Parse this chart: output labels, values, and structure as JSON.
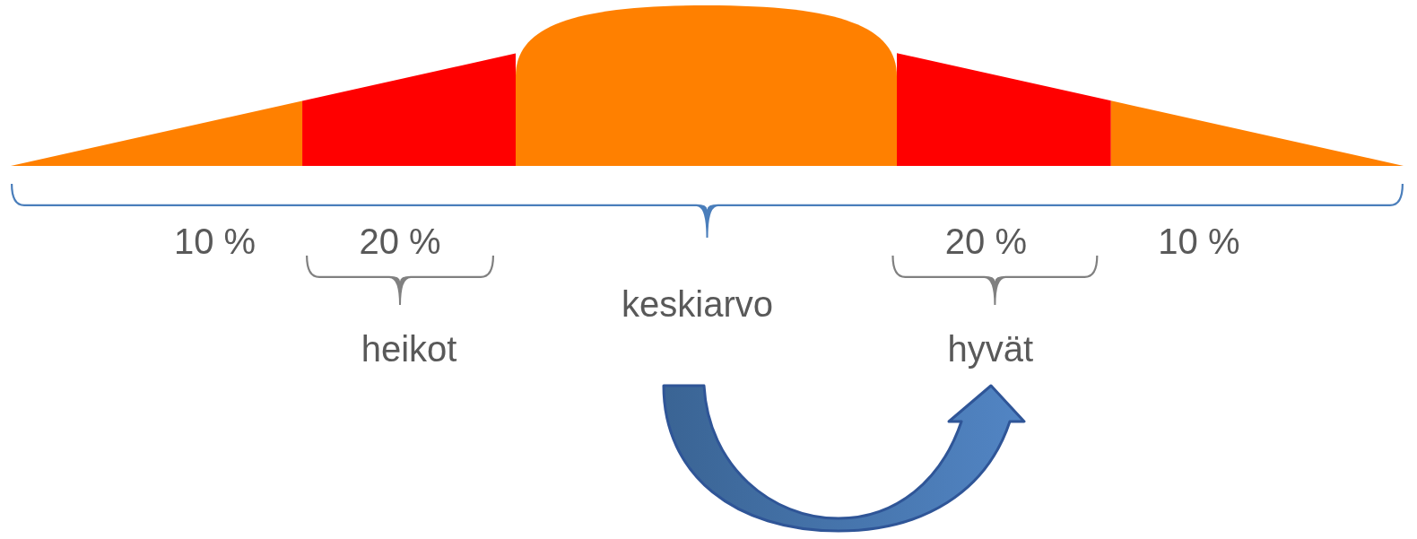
{
  "chart_data": {
    "type": "other",
    "categories": [
      null,
      "heikot",
      "keskiarvo",
      "hyvät",
      null
    ],
    "values": [
      10,
      20,
      null,
      20,
      10
    ],
    "value_labels": [
      "10 %",
      "20 %",
      null,
      "20 %",
      "10 %"
    ],
    "colors": [
      "#ff8000",
      "#ff0000",
      "#ff8000",
      "#ff0000",
      "#ff8000"
    ]
  }
}
